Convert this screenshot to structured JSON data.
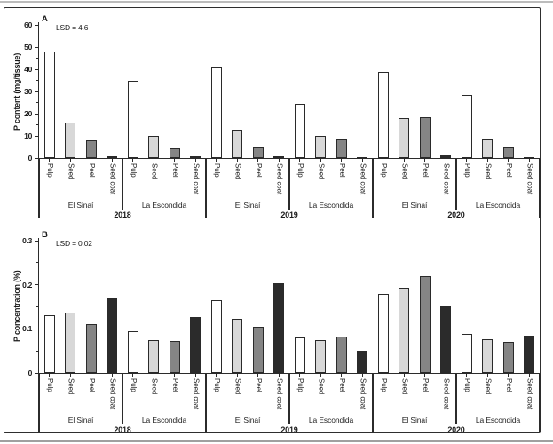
{
  "figure_type": "two-panel grouped bar chart",
  "colors": {
    "pulp_fill": "#ffffff",
    "seed_fill": "#d8d8d8",
    "peel_fill": "#858585",
    "seed_coat_fill": "#2b2b2b",
    "line": "#2b2b2b",
    "text": "#1a1a1a"
  },
  "chart_data": [
    {
      "type": "bar",
      "panel_label": "A",
      "annotation": "LSD = 4.6",
      "ylabel": "P content (mg/tissue)",
      "ylim": [
        0,
        60
      ],
      "yticks": [
        0,
        10,
        20,
        30,
        40,
        50,
        60
      ],
      "ytick_labels": [
        "0",
        "10",
        "20",
        "30",
        "40",
        "50",
        "60"
      ],
      "yticks_minor": [
        5,
        15,
        25,
        35,
        45,
        55
      ],
      "grid": "off",
      "legend": "none",
      "categories": [
        "Pulp",
        "Seed",
        "Peel",
        "Seed coat"
      ],
      "groups": [
        {
          "year": "2018",
          "location": "El Sinaí",
          "values": [
            48,
            16,
            8,
            1
          ]
        },
        {
          "year": "2018",
          "location": "La Escondida",
          "values": [
            35,
            10,
            4.5,
            0.8
          ]
        },
        {
          "year": "2019",
          "location": "El Sinaí",
          "values": [
            41,
            13,
            5,
            1
          ]
        },
        {
          "year": "2019",
          "location": "La Escondida",
          "values": [
            24.5,
            10,
            8.5,
            0.5
          ]
        },
        {
          "year": "2020",
          "location": "El Sinaí",
          "values": [
            39,
            18,
            18.5,
            1.5
          ]
        },
        {
          "year": "2020",
          "location": "La Escondida",
          "values": [
            28.5,
            8.5,
            5,
            0.4
          ]
        }
      ],
      "years": [
        "2018",
        "2019",
        "2020"
      ]
    },
    {
      "type": "bar",
      "panel_label": "B",
      "annotation": "LSD = 0.02",
      "ylabel": "P concentration (%)",
      "ylim": [
        0,
        0.3
      ],
      "yticks": [
        0,
        0.1,
        0.2,
        0.3
      ],
      "ytick_labels": [
        "0",
        "0.1",
        "0.2",
        "0.3"
      ],
      "yticks_minor": [
        0.05,
        0.15,
        0.25
      ],
      "grid": "off",
      "legend": "none",
      "categories": [
        "Pulp",
        "Seed",
        "Peel",
        "Seed coat"
      ],
      "groups": [
        {
          "year": "2018",
          "location": "El Sinaí",
          "values": [
            0.13,
            0.136,
            0.11,
            0.17
          ]
        },
        {
          "year": "2018",
          "location": "La Escondida",
          "values": [
            0.095,
            0.075,
            0.072,
            0.126
          ]
        },
        {
          "year": "2019",
          "location": "El Sinaí",
          "values": [
            0.165,
            0.122,
            0.104,
            0.204
          ]
        },
        {
          "year": "2019",
          "location": "La Escondida",
          "values": [
            0.08,
            0.074,
            0.083,
            0.05
          ]
        },
        {
          "year": "2020",
          "location": "El Sinaí",
          "values": [
            0.18,
            0.194,
            0.22,
            0.151
          ]
        },
        {
          "year": "2020",
          "location": "La Escondida",
          "values": [
            0.089,
            0.076,
            0.071,
            0.084
          ]
        }
      ],
      "years": [
        "2018",
        "2019",
        "2020"
      ]
    }
  ]
}
